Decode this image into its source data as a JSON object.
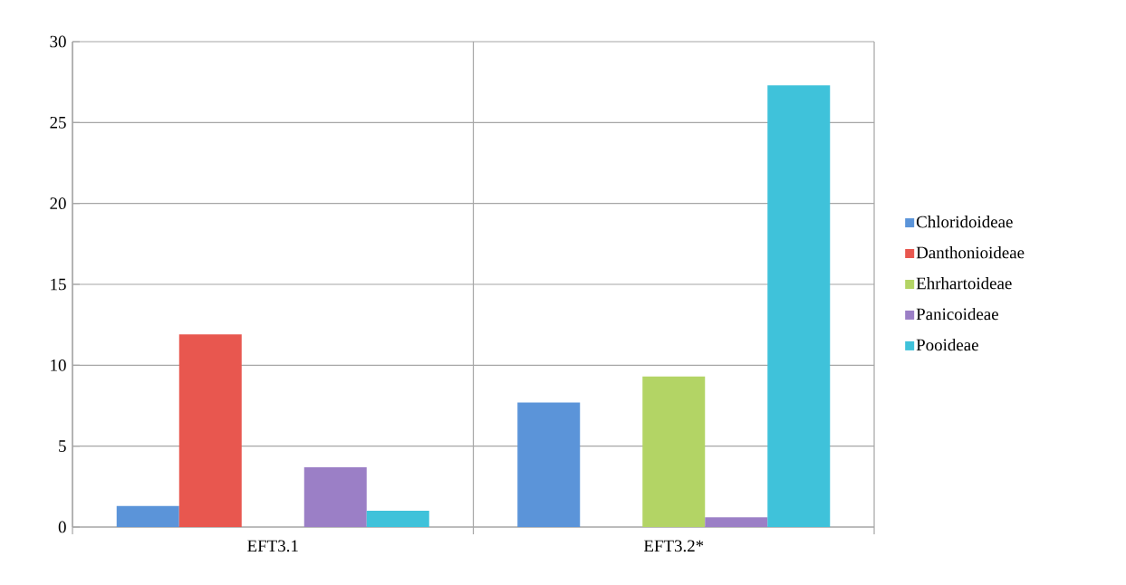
{
  "chart_data": {
    "type": "bar",
    "categories": [
      "EFT3.1",
      "EFT3.2*"
    ],
    "series": [
      {
        "name": "Chloridoideae",
        "color": "#5b94d9",
        "values": [
          1.3,
          7.7
        ]
      },
      {
        "name": "Danthonioideae",
        "color": "#e8574f",
        "values": [
          11.9,
          0
        ]
      },
      {
        "name": "Ehrhartoideae",
        "color": "#b3d465",
        "values": [
          0,
          9.3
        ]
      },
      {
        "name": "Panicoideae",
        "color": "#9b7fc6",
        "values": [
          3.7,
          0.6
        ]
      },
      {
        "name": "Pooideae",
        "color": "#3fc2da",
        "values": [
          1.0,
          27.3
        ]
      }
    ],
    "ylim": [
      0,
      30
    ],
    "yticks": [
      0,
      5,
      10,
      15,
      20,
      25,
      30
    ],
    "grid": true,
    "legend": "right"
  }
}
